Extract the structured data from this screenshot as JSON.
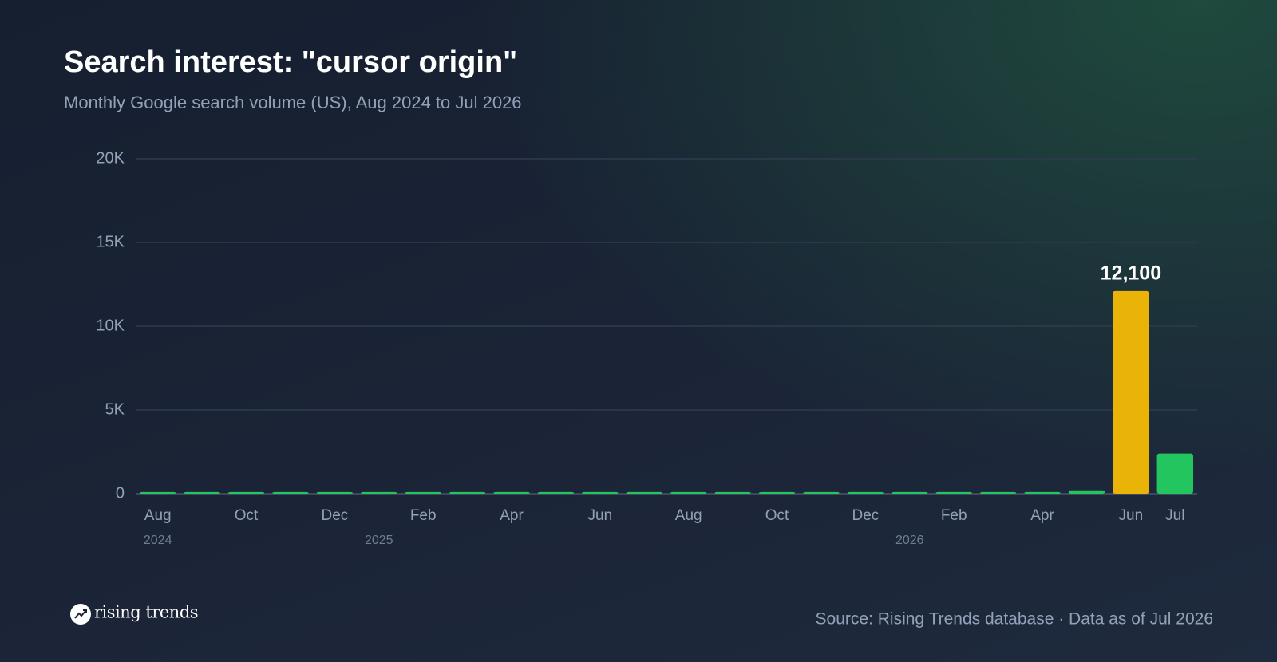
{
  "chart_data": {
    "type": "bar",
    "title": "Search interest: \"cursor origin\"",
    "subtitle": "Monthly Google search volume (US), Aug 2024 to Jul 2026",
    "categories": [
      "Aug",
      null,
      "Oct",
      null,
      "Dec",
      null,
      "Feb",
      null,
      "Apr",
      null,
      "Jun",
      null,
      "Aug",
      null,
      "Oct",
      null,
      "Dec",
      null,
      "Feb",
      null,
      "Apr",
      null,
      "Jun",
      "Jul"
    ],
    "years": [
      "2024",
      null,
      null,
      null,
      null,
      "2025",
      null,
      null,
      null,
      null,
      null,
      null,
      null,
      null,
      null,
      null,
      null,
      "2026",
      null,
      null,
      null,
      null,
      null,
      null
    ],
    "values": [
      100,
      100,
      100,
      100,
      100,
      100,
      100,
      100,
      100,
      100,
      100,
      100,
      100,
      100,
      100,
      100,
      100,
      100,
      100,
      100,
      100,
      200,
      12100,
      2400
    ],
    "value_labels": [
      null,
      null,
      null,
      null,
      null,
      null,
      null,
      null,
      null,
      null,
      null,
      null,
      null,
      null,
      null,
      null,
      null,
      null,
      null,
      null,
      null,
      null,
      "12,100",
      null
    ],
    "colors": [
      "#22c55e",
      "#22c55e",
      "#22c55e",
      "#22c55e",
      "#22c55e",
      "#22c55e",
      "#22c55e",
      "#22c55e",
      "#22c55e",
      "#22c55e",
      "#22c55e",
      "#22c55e",
      "#22c55e",
      "#22c55e",
      "#22c55e",
      "#22c55e",
      "#22c55e",
      "#22c55e",
      "#22c55e",
      "#22c55e",
      "#22c55e",
      "#22c55e",
      "#eab308",
      "#22c55e"
    ],
    "ylim": [
      0,
      20000
    ],
    "yticks": [
      0,
      {
        "value": 5000,
        "label": "5K"
      },
      {
        "value": 10000,
        "label": "10K"
      },
      {
        "value": 15000,
        "label": "15K"
      },
      {
        "value": 20000,
        "label": "20K"
      }
    ],
    "grid": true
  },
  "footer": {
    "brand": "rising trends",
    "source": "Source: Rising Trends database · Data as of Jul 2026"
  }
}
